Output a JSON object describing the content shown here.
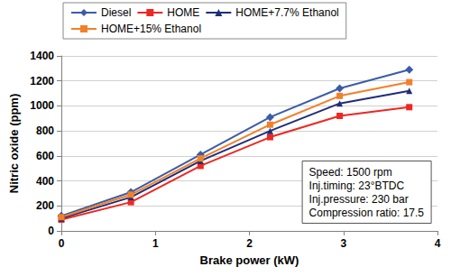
{
  "chart_data": {
    "type": "line",
    "x_label": "Brake power (kW)",
    "y_label": "Nitric oxide (ppm)",
    "x": [
      0,
      0.74,
      1.48,
      2.22,
      2.96,
      3.7
    ],
    "series": [
      {
        "name": "Diesel",
        "color": "#3b5ca8",
        "marker": "diamond",
        "values": [
          120,
          310,
          610,
          910,
          1140,
          1290
        ]
      },
      {
        "name": "HOME",
        "color": "#ee2722",
        "marker": "square",
        "values": [
          90,
          230,
          520,
          750,
          920,
          990
        ]
      },
      {
        "name": "HOME+7.7% Ethanol",
        "color": "#1f2d78",
        "marker": "triangle",
        "values": [
          100,
          270,
          560,
          800,
          1020,
          1120
        ]
      },
      {
        "name": "HOME+15% Ethanol",
        "color": "#f28029",
        "marker": "square",
        "values": [
          110,
          290,
          580,
          850,
          1080,
          1190
        ]
      }
    ],
    "xlim": [
      0,
      4
    ],
    "xticks": [
      0,
      1,
      2,
      3,
      4
    ],
    "ylim": [
      0,
      1400
    ],
    "yticks": [
      0,
      200,
      400,
      600,
      800,
      1000,
      1200,
      1400
    ],
    "grid": true,
    "legend": "top",
    "annotations": [
      "Speed: 1500 rpm",
      "Inj.timing: 23°BTDC",
      "Inj.pressure: 230 bar",
      "Compression ratio: 17.5"
    ]
  }
}
